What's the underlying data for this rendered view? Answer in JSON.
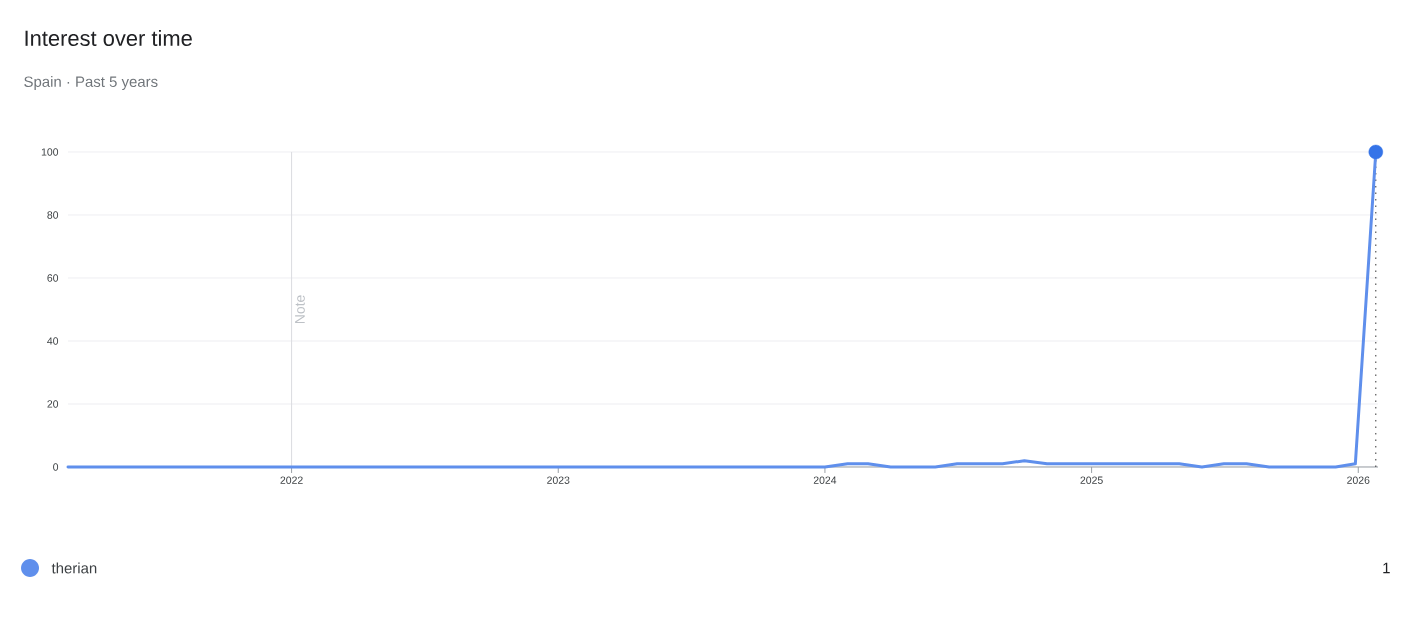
{
  "chart_data": {
    "type": "line",
    "title": "Interest over time",
    "subtitle": "Spain · Past 5 years",
    "xlim": [
      "2021-03-01",
      "2026-01-28"
    ],
    "xticks": [
      "2022",
      "2023",
      "2024",
      "2025",
      "2026"
    ],
    "ylim": [
      0,
      100
    ],
    "yticks": [
      0,
      20,
      40,
      60,
      80,
      100
    ],
    "grid": "y",
    "legend": "bottom",
    "series": [
      {
        "name": "therian",
        "color": "#5f8fec",
        "x": [
          "2021-03-01",
          "2024-01-01",
          "2024-02-01",
          "2024-03-01",
          "2024-04-01",
          "2024-06-01",
          "2024-07-01",
          "2024-09-01",
          "2024-10-01",
          "2024-11-01",
          "2025-05-01",
          "2025-06-01",
          "2025-07-01",
          "2025-08-01",
          "2025-09-01",
          "2025-12-01",
          "2025-12-28",
          "2026-01-25"
        ],
        "values": [
          0,
          0,
          1,
          1,
          0,
          0,
          1,
          1,
          2,
          1,
          1,
          0,
          1,
          1,
          0,
          0,
          1,
          100
        ]
      },
      {
        "type": "scatter",
        "color": "#3574e8",
        "marker": "circle",
        "x": [
          "2026-01-25"
        ],
        "values": [
          100
        ]
      }
    ],
    "ref_lines": [
      {
        "axis": "x",
        "value": "2022-01-01",
        "label": "Note",
        "color": "#dadce0",
        "line_style": "solid"
      },
      {
        "axis": "x",
        "value": "2026-01-25",
        "color": "#333333",
        "line_style": "dotted"
      }
    ],
    "annotations": [
      "1"
    ]
  }
}
